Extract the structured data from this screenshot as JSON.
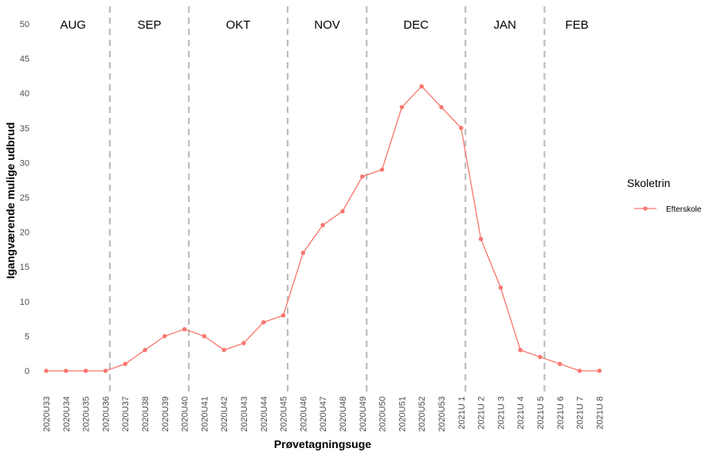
{
  "chart_data": {
    "type": "line",
    "xlabel": "Prøvetagningsuge",
    "ylabel": "Igangværende mulige udbrud",
    "ylim": [
      0,
      50
    ],
    "yticks": [
      0,
      5,
      10,
      15,
      20,
      25,
      30,
      35,
      40,
      45,
      50
    ],
    "grid": false,
    "legend_position": "right",
    "legend_title": "Skoletrin",
    "colors": {
      "series": "#f8766d",
      "month_divider": "#bdbdbd"
    },
    "categories": [
      "2020U33",
      "2020U34",
      "2020U35",
      "2020U36",
      "2020U37",
      "2020U38",
      "2020U39",
      "2020U40",
      "2020U41",
      "2020U42",
      "2020U43",
      "2020U44",
      "2020U45",
      "2020U46",
      "2020U47",
      "2020U48",
      "2020U49",
      "2020U50",
      "2020U51",
      "2020U52",
      "2020U53",
      "2021U 1",
      "2021U 2",
      "2021U 3",
      "2021U 4",
      "2021U 5",
      "2021U 6",
      "2021U 7",
      "2021U 8"
    ],
    "series": [
      {
        "name": "Efterskole",
        "values": [
          0,
          0,
          0,
          0,
          1,
          3,
          5,
          6,
          5,
          3,
          4,
          7,
          8,
          17,
          21,
          23,
          28,
          29,
          38,
          41,
          38,
          35,
          19,
          12,
          3,
          2,
          1,
          0,
          0
        ]
      }
    ],
    "month_dividers_after": [
      "2020U36",
      "2020U40",
      "2020U45",
      "2020U49",
      "2021U 1",
      "2021U 5"
    ],
    "month_labels": [
      "AUG",
      "SEP",
      "OKT",
      "NOV",
      "DEC",
      "JAN",
      "FEB"
    ]
  }
}
